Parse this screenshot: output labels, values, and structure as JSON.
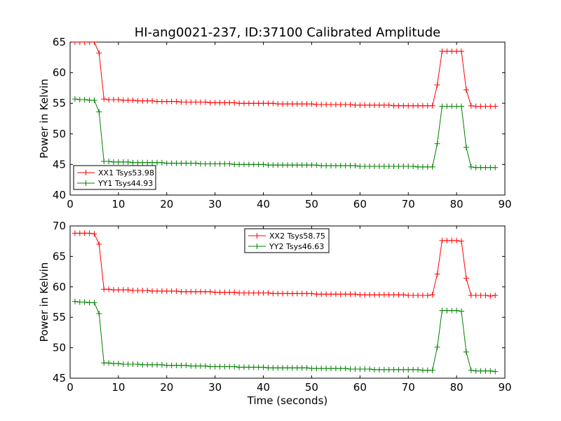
{
  "chart_data": [
    {
      "type": "line",
      "title": "HI-ang0021-237, ID:37100 Calibrated Amplitude",
      "xlabel": "",
      "ylabel": "Power in Kelvin",
      "xlim": [
        0,
        90
      ],
      "ylim": [
        40,
        65
      ],
      "xticks": [
        0,
        10,
        20,
        30,
        40,
        50,
        60,
        70,
        80,
        90
      ],
      "yticks": [
        40,
        45,
        50,
        55,
        60,
        65
      ],
      "legend_position": "lower-left",
      "marker": "plus",
      "x": [
        1,
        2,
        3,
        4,
        5,
        6,
        7,
        8,
        9,
        10,
        11,
        12,
        13,
        14,
        15,
        16,
        17,
        18,
        19,
        20,
        21,
        22,
        23,
        24,
        25,
        26,
        27,
        28,
        29,
        30,
        31,
        32,
        33,
        34,
        35,
        36,
        37,
        38,
        39,
        40,
        41,
        42,
        43,
        44,
        45,
        46,
        47,
        48,
        49,
        50,
        51,
        52,
        53,
        54,
        55,
        56,
        57,
        58,
        59,
        60,
        61,
        62,
        63,
        64,
        65,
        66,
        67,
        68,
        69,
        70,
        71,
        72,
        73,
        74,
        75,
        76,
        77,
        78,
        79,
        80,
        81,
        82,
        83,
        84,
        85,
        86,
        87,
        88
      ],
      "series": [
        {
          "name": "XX1 Tsys53.98",
          "color": "#ff0000",
          "values": [
            65.0,
            65.0,
            65.0,
            65.0,
            65.0,
            63.2,
            55.7,
            55.6,
            55.6,
            55.6,
            55.5,
            55.5,
            55.5,
            55.4,
            55.4,
            55.4,
            55.4,
            55.3,
            55.3,
            55.3,
            55.3,
            55.3,
            55.2,
            55.2,
            55.2,
            55.2,
            55.2,
            55.2,
            55.1,
            55.1,
            55.1,
            55.1,
            55.1,
            55.1,
            55.0,
            55.0,
            55.0,
            55.0,
            55.0,
            55.0,
            55.0,
            55.0,
            54.9,
            54.9,
            54.9,
            54.9,
            54.9,
            54.9,
            54.9,
            54.9,
            54.8,
            54.8,
            54.8,
            54.8,
            54.8,
            54.8,
            54.8,
            54.8,
            54.7,
            54.7,
            54.7,
            54.7,
            54.7,
            54.7,
            54.7,
            54.7,
            54.6,
            54.6,
            54.6,
            54.6,
            54.6,
            54.6,
            54.6,
            54.6,
            54.6,
            58.0,
            63.5,
            63.5,
            63.5,
            63.5,
            63.5,
            57.2,
            54.6,
            54.5,
            54.5,
            54.5,
            54.5,
            54.5
          ]
        },
        {
          "name": "YY1 Tsys44.93",
          "color": "#008000",
          "values": [
            55.7,
            55.6,
            55.6,
            55.5,
            55.5,
            53.6,
            45.5,
            45.5,
            45.4,
            45.4,
            45.4,
            45.4,
            45.3,
            45.3,
            45.3,
            45.3,
            45.3,
            45.3,
            45.3,
            45.2,
            45.2,
            45.2,
            45.2,
            45.2,
            45.2,
            45.2,
            45.1,
            45.1,
            45.1,
            45.1,
            45.1,
            45.1,
            45.1,
            45.0,
            45.0,
            45.0,
            45.0,
            45.0,
            45.0,
            45.0,
            44.9,
            44.9,
            44.9,
            44.9,
            44.9,
            44.9,
            44.9,
            44.9,
            44.9,
            44.9,
            44.9,
            44.8,
            44.8,
            44.8,
            44.8,
            44.8,
            44.8,
            44.8,
            44.8,
            44.7,
            44.7,
            44.7,
            44.7,
            44.7,
            44.7,
            44.7,
            44.7,
            44.7,
            44.7,
            44.7,
            44.7,
            44.6,
            44.6,
            44.6,
            44.6,
            48.4,
            54.5,
            54.5,
            54.5,
            54.5,
            54.5,
            47.8,
            44.6,
            44.5,
            44.5,
            44.5,
            44.5,
            44.5
          ]
        }
      ]
    },
    {
      "type": "line",
      "title": "",
      "xlabel": "Time (seconds)",
      "ylabel": "Power in Kelvin",
      "xlim": [
        0,
        90
      ],
      "ylim": [
        45,
        70
      ],
      "xticks": [
        0,
        10,
        20,
        30,
        40,
        50,
        60,
        70,
        80,
        90
      ],
      "yticks": [
        45,
        50,
        55,
        60,
        65,
        70
      ],
      "legend_position": "upper-center",
      "marker": "plus",
      "x": [
        1,
        2,
        3,
        4,
        5,
        6,
        7,
        8,
        9,
        10,
        11,
        12,
        13,
        14,
        15,
        16,
        17,
        18,
        19,
        20,
        21,
        22,
        23,
        24,
        25,
        26,
        27,
        28,
        29,
        30,
        31,
        32,
        33,
        34,
        35,
        36,
        37,
        38,
        39,
        40,
        41,
        42,
        43,
        44,
        45,
        46,
        47,
        48,
        49,
        50,
        51,
        52,
        53,
        54,
        55,
        56,
        57,
        58,
        59,
        60,
        61,
        62,
        63,
        64,
        65,
        66,
        67,
        68,
        69,
        70,
        71,
        72,
        73,
        74,
        75,
        76,
        77,
        78,
        79,
        80,
        81,
        82,
        83,
        84,
        85,
        86,
        87,
        88
      ],
      "series": [
        {
          "name": "XX2 Tsys58.75",
          "color": "#ff0000",
          "values": [
            68.8,
            68.8,
            68.8,
            68.8,
            68.7,
            67.0,
            59.6,
            59.6,
            59.5,
            59.5,
            59.5,
            59.5,
            59.4,
            59.4,
            59.4,
            59.4,
            59.3,
            59.3,
            59.3,
            59.3,
            59.3,
            59.3,
            59.2,
            59.2,
            59.2,
            59.2,
            59.2,
            59.2,
            59.2,
            59.1,
            59.1,
            59.1,
            59.1,
            59.1,
            59.0,
            59.0,
            59.0,
            59.0,
            59.0,
            59.0,
            59.0,
            58.9,
            58.9,
            58.9,
            58.9,
            58.9,
            58.9,
            58.9,
            58.9,
            58.9,
            58.8,
            58.8,
            58.8,
            58.8,
            58.8,
            58.8,
            58.8,
            58.8,
            58.8,
            58.7,
            58.7,
            58.7,
            58.7,
            58.7,
            58.7,
            58.7,
            58.7,
            58.7,
            58.7,
            58.6,
            58.6,
            58.6,
            58.6,
            58.6,
            58.7,
            62.1,
            67.6,
            67.6,
            67.6,
            67.6,
            67.5,
            61.4,
            58.6,
            58.6,
            58.6,
            58.6,
            58.5,
            58.6
          ]
        },
        {
          "name": "YY2 Tsys46.63",
          "color": "#008000",
          "values": [
            57.6,
            57.5,
            57.5,
            57.4,
            57.4,
            55.6,
            47.5,
            47.5,
            47.4,
            47.4,
            47.3,
            47.3,
            47.3,
            47.3,
            47.2,
            47.2,
            47.2,
            47.2,
            47.2,
            47.1,
            47.1,
            47.1,
            47.1,
            47.1,
            47.0,
            47.0,
            47.0,
            47.0,
            46.9,
            46.9,
            46.9,
            46.9,
            46.9,
            46.9,
            46.8,
            46.8,
            46.8,
            46.8,
            46.8,
            46.8,
            46.7,
            46.7,
            46.7,
            46.7,
            46.7,
            46.7,
            46.7,
            46.7,
            46.7,
            46.6,
            46.6,
            46.6,
            46.6,
            46.6,
            46.6,
            46.6,
            46.6,
            46.5,
            46.5,
            46.5,
            46.5,
            46.5,
            46.4,
            46.4,
            46.4,
            46.4,
            46.4,
            46.4,
            46.4,
            46.4,
            46.4,
            46.4,
            46.3,
            46.3,
            46.3,
            50.1,
            56.1,
            56.1,
            56.1,
            56.1,
            56.0,
            49.3,
            46.3,
            46.2,
            46.2,
            46.2,
            46.2,
            46.1
          ]
        }
      ]
    }
  ]
}
